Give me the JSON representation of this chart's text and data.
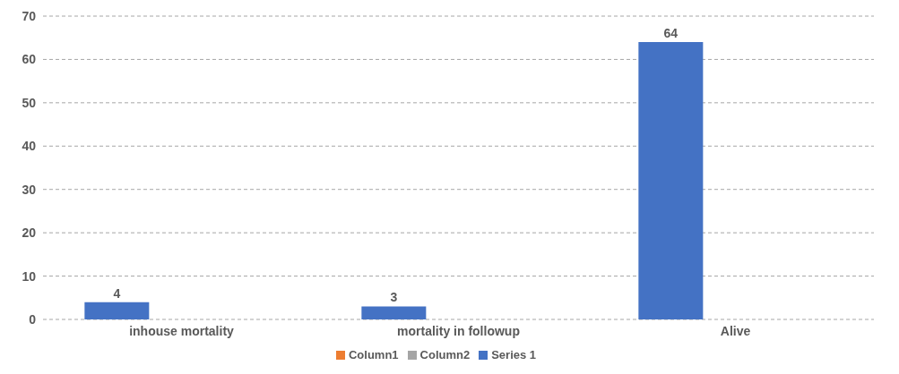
{
  "chart_data": {
    "type": "bar",
    "categories": [
      "inhouse mortality",
      "mortality in followup",
      "Alive"
    ],
    "series": [
      {
        "name": "Series 1",
        "color": "#4472c4",
        "values": [
          4,
          3,
          64
        ]
      },
      {
        "name": "Column1",
        "color": "#ed7d31",
        "values": [
          null,
          null,
          null
        ]
      },
      {
        "name": "Column2",
        "color": "#a5a5a5",
        "values": [
          null,
          null,
          null
        ]
      }
    ],
    "ylim": [
      0,
      70
    ],
    "yticks": [
      0,
      10,
      20,
      30,
      40,
      50,
      60,
      70
    ],
    "grid": "y",
    "legend": "bottom",
    "data_labels": true
  }
}
